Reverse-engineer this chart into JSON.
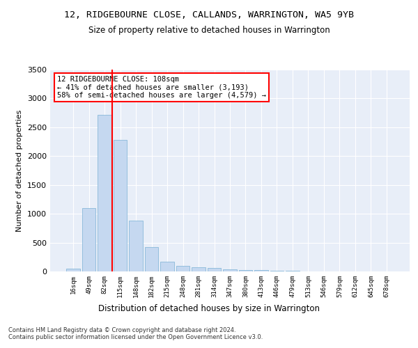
{
  "title": "12, RIDGEBOURNE CLOSE, CALLANDS, WARRINGTON, WA5 9YB",
  "subtitle": "Size of property relative to detached houses in Warrington",
  "xlabel": "Distribution of detached houses by size in Warrington",
  "ylabel": "Number of detached properties",
  "categories": [
    "16sqm",
    "49sqm",
    "82sqm",
    "115sqm",
    "148sqm",
    "182sqm",
    "215sqm",
    "248sqm",
    "281sqm",
    "314sqm",
    "347sqm",
    "380sqm",
    "413sqm",
    "446sqm",
    "479sqm",
    "513sqm",
    "546sqm",
    "579sqm",
    "612sqm",
    "645sqm",
    "678sqm"
  ],
  "values": [
    50,
    1100,
    2720,
    2280,
    880,
    420,
    170,
    95,
    70,
    55,
    40,
    30,
    25,
    18,
    10,
    5,
    3,
    2,
    1,
    1,
    0
  ],
  "bar_color": "#c5d8f0",
  "bar_edge_color": "#7ab0d4",
  "vline_color": "red",
  "vline_pos": 2.5,
  "annotation_text": "12 RIDGEBOURNE CLOSE: 108sqm\n← 41% of detached houses are smaller (3,193)\n58% of semi-detached houses are larger (4,579) →",
  "annotation_box_color": "white",
  "annotation_box_edge_color": "red",
  "ylim": [
    0,
    3500
  ],
  "yticks": [
    0,
    500,
    1000,
    1500,
    2000,
    2500,
    3000,
    3500
  ],
  "bg_color": "#e8eef8",
  "grid_color": "white",
  "footnote1": "Contains HM Land Registry data © Crown copyright and database right 2024.",
  "footnote2": "Contains public sector information licensed under the Open Government Licence v3.0."
}
